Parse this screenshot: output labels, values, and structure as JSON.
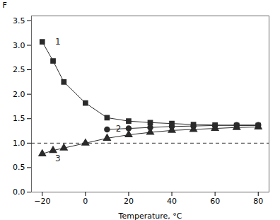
{
  "chart_data": {
    "type": "line",
    "xlabel": "Temperature, °C",
    "ylabel": "F",
    "series": [
      {
        "x": [
          -20,
          -15,
          -10,
          0,
          10,
          20,
          30,
          40,
          50,
          60,
          70,
          80
        ],
        "values": [
          3.07,
          2.68,
          2.25,
          1.82,
          1.52,
          1.45,
          1.42,
          1.4,
          1.38,
          1.37,
          1.36,
          1.36
        ],
        "marker": "square",
        "color": "#2a2a2a"
      },
      {
        "x": [
          10,
          20,
          30,
          40,
          50,
          60,
          70,
          80
        ],
        "values": [
          1.28,
          1.3,
          1.32,
          1.34,
          1.35,
          1.36,
          1.37,
          1.37
        ],
        "marker": "circle",
        "color": "#2a2a2a"
      },
      {
        "x": [
          -20,
          -15,
          -10,
          0,
          10,
          20,
          30,
          40,
          50,
          60,
          70,
          80
        ],
        "values": [
          0.78,
          0.85,
          0.9,
          1.0,
          1.1,
          1.17,
          1.22,
          1.26,
          1.28,
          1.3,
          1.32,
          1.33
        ],
        "marker": "triangle",
        "color": "#2a2a2a"
      }
    ],
    "hlines": [
      {
        "y": 1.0,
        "line_style": "dashed",
        "color": "#2a2a2a"
      }
    ],
    "annotations": [
      {
        "text": "1",
        "x": -14,
        "y": 3.07,
        "color": "#2a2a2a"
      },
      {
        "text": "2",
        "x": 14,
        "y": 1.29,
        "color": "#2a2a2a"
      },
      {
        "text": "3",
        "x": -14,
        "y": 0.68,
        "color": "#2a2a2a"
      }
    ],
    "xlim": [
      -25,
      85
    ],
    "ylim": [
      0,
      3.6
    ],
    "xticks": [
      -20,
      0,
      20,
      40,
      60,
      80
    ],
    "yticks": [
      {
        "value": 0,
        "label": "0.0"
      },
      0.5,
      {
        "value": 1.0,
        "label": "1.0"
      },
      1.5,
      {
        "value": 2.0,
        "label": "2.0"
      },
      2.5,
      {
        "value": 3.0,
        "label": "3.0"
      },
      3.5
    ]
  }
}
